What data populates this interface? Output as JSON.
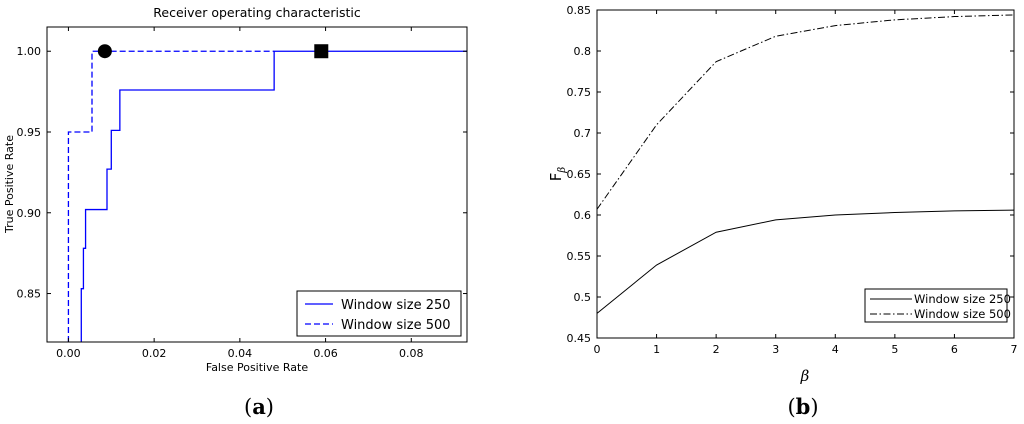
{
  "chart_data": [
    {
      "panel_label_letter": "a",
      "type": "line",
      "step": true,
      "title": "Receiver operating characteristic",
      "xlabel": "False Positive Rate",
      "ylabel": "True Positive Rate",
      "xlim": [
        -0.005,
        0.093
      ],
      "ylim": [
        0.82,
        1.015
      ],
      "x_ticks": [
        0.0,
        0.02,
        0.04,
        0.06,
        0.08
      ],
      "x_tick_labels": [
        "0.00",
        "0.02",
        "0.04",
        "0.06",
        "0.08"
      ],
      "y_ticks": [
        0.85,
        0.9,
        0.95,
        1.0
      ],
      "y_tick_labels": [
        "0.85",
        "0.90",
        "0.95",
        "1.00"
      ],
      "legend_position": "lower-right",
      "series": [
        {
          "name": "Window size 250",
          "color": "#0000ff",
          "dash": "solid",
          "x": [
            0.003,
            0.003,
            0.0035,
            0.0035,
            0.004,
            0.004,
            0.009,
            0.009,
            0.01,
            0.01,
            0.012,
            0.012,
            0.048,
            0.048,
            0.093
          ],
          "y": [
            0.82,
            0.853,
            0.853,
            0.878,
            0.878,
            0.902,
            0.902,
            0.927,
            0.927,
            0.951,
            0.951,
            0.976,
            0.976,
            1.0,
            1.0
          ]
        },
        {
          "name": "Window size 500",
          "color": "#0000ff",
          "dash": "dashed",
          "x": [
            0.0,
            0.0,
            0.0055,
            0.0055,
            0.048
          ],
          "y": [
            0.82,
            0.95,
            0.95,
            1.0,
            1.0
          ]
        }
      ],
      "markers": [
        {
          "shape": "circle",
          "x": 0.0085,
          "y": 1.0,
          "color": "#000000"
        },
        {
          "shape": "square",
          "x": 0.059,
          "y": 1.0,
          "color": "#000000"
        }
      ]
    },
    {
      "panel_label_letter": "b",
      "type": "line",
      "xlabel": "β",
      "ylabel": "F",
      "ylabel_subscript": "β",
      "xlim": [
        0,
        7
      ],
      "ylim": [
        0.45,
        0.85
      ],
      "x_ticks": [
        0,
        1,
        2,
        3,
        4,
        5,
        6,
        7
      ],
      "x_tick_labels": [
        "0",
        "1",
        "2",
        "3",
        "4",
        "5",
        "6",
        "7"
      ],
      "y_ticks": [
        0.45,
        0.5,
        0.55,
        0.6,
        0.65,
        0.7,
        0.75,
        0.8,
        0.85
      ],
      "y_tick_labels": [
        "0.45",
        "0.5",
        "0.55",
        "0.6",
        "0.65",
        "0.7",
        "0.75",
        "0.8",
        "0.85"
      ],
      "legend_position": "lower-right",
      "series": [
        {
          "name": "Window size 250",
          "color": "#000000",
          "dash": "solid",
          "x": [
            0,
            1,
            2,
            3,
            4,
            5,
            6,
            7
          ],
          "y": [
            0.48,
            0.539,
            0.579,
            0.594,
            0.6,
            0.603,
            0.605,
            0.606
          ]
        },
        {
          "name": "Window size 500",
          "color": "#000000",
          "dash": "dashdot",
          "x": [
            0,
            1,
            2,
            3,
            4,
            5,
            6,
            7
          ],
          "y": [
            0.607,
            0.71,
            0.787,
            0.818,
            0.831,
            0.838,
            0.842,
            0.844
          ]
        }
      ]
    }
  ]
}
